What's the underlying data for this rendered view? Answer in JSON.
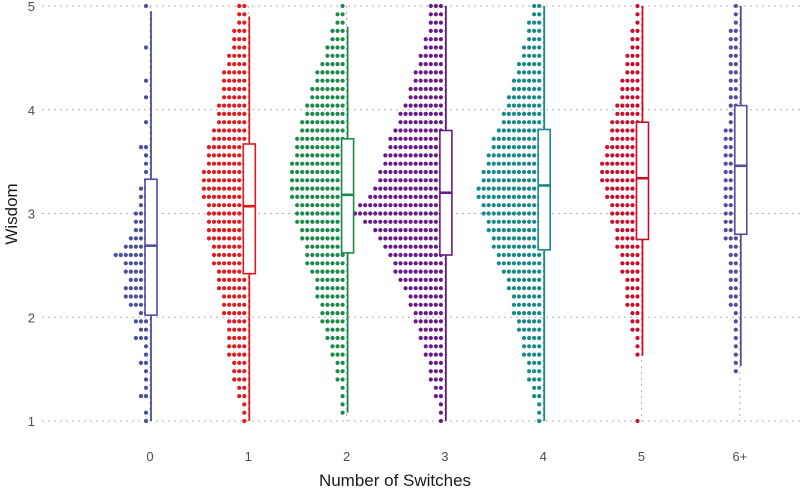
{
  "chart_data": {
    "type": "dot-box",
    "xlabel": "Number of Switches",
    "ylabel": "Wisdom",
    "ylim": [
      1,
      5
    ],
    "yticks": [
      1,
      2,
      3,
      4,
      5
    ],
    "grid": true,
    "categories": [
      {
        "label": "0",
        "color": "#4a4f9c",
        "median": 2.69,
        "q1": 2.02,
        "q3": 3.33,
        "whisker_low": 1.0,
        "whisker_high": 4.95
      },
      {
        "label": "1",
        "color": "#e31a1c",
        "median": 3.07,
        "q1": 2.42,
        "q3": 3.67,
        "whisker_low": 1.0,
        "whisker_high": 4.9
      },
      {
        "label": "2",
        "color": "#1b8a4a",
        "median": 3.18,
        "q1": 2.62,
        "q3": 3.72,
        "whisker_low": 1.08,
        "whisker_high": 4.8
      },
      {
        "label": "3",
        "color": "#6a1b8a",
        "median": 3.2,
        "q1": 2.6,
        "q3": 3.8,
        "whisker_low": 1.0,
        "whisker_high": 5.0
      },
      {
        "label": "4",
        "color": "#168a8a",
        "median": 3.27,
        "q1": 2.65,
        "q3": 3.81,
        "whisker_low": 1.0,
        "whisker_high": 5.0
      },
      {
        "label": "5",
        "color": "#c8102e",
        "median": 3.34,
        "q1": 2.75,
        "q3": 3.88,
        "whisker_low": 1.63,
        "whisker_high": 5.0
      },
      {
        "label": "6+",
        "color": "#5b4a9c",
        "median": 3.46,
        "q1": 2.8,
        "q3": 4.04,
        "whisker_low": 1.53,
        "whisker_high": 5.0
      }
    ],
    "distribution_bins": [
      [
        1,
        1,
        0,
        2,
        1,
        1,
        1,
        2,
        1,
        1,
        3,
        2,
        3,
        2,
        4,
        5,
        5,
        4,
        5,
        5,
        7,
        5,
        4,
        3,
        3,
        3,
        2,
        2,
        2,
        1,
        1,
        1,
        1,
        2,
        0,
        0,
        1,
        0,
        0,
        1,
        0,
        1,
        0,
        0,
        0,
        1,
        0,
        0,
        0,
        0,
        1
      ],
      [
        1,
        1,
        1,
        2,
        2,
        3,
        3,
        3,
        4,
        4,
        4,
        4,
        4,
        5,
        5,
        5,
        6,
        6,
        6,
        7,
        7,
        7,
        8,
        8,
        8,
        8,
        8,
        9,
        9,
        9,
        9,
        8,
        8,
        8,
        7,
        7,
        6,
        6,
        6,
        5,
        5,
        5,
        5,
        4,
        4,
        3,
        3,
        3,
        2,
        2,
        2
      ],
      [
        0,
        1,
        1,
        1,
        1,
        2,
        2,
        2,
        3,
        3,
        4,
        4,
        5,
        5,
        5,
        6,
        6,
        6,
        7,
        8,
        8,
        8,
        9,
        9,
        10,
        10,
        10,
        11,
        11,
        11,
        11,
        11,
        10,
        10,
        10,
        9,
        9,
        8,
        8,
        7,
        7,
        6,
        6,
        5,
        4,
        4,
        3,
        3,
        2,
        2,
        1
      ],
      [
        1,
        1,
        1,
        2,
        2,
        3,
        3,
        3,
        4,
        4,
        5,
        5,
        6,
        6,
        7,
        7,
        8,
        9,
        10,
        10,
        11,
        12,
        13,
        14,
        16,
        18,
        17,
        15,
        14,
        13,
        13,
        12,
        12,
        11,
        11,
        10,
        9,
        9,
        8,
        7,
        7,
        6,
        6,
        5,
        5,
        4,
        4,
        3,
        3,
        3,
        3
      ],
      [
        1,
        1,
        1,
        2,
        2,
        3,
        3,
        3,
        4,
        4,
        4,
        5,
        5,
        6,
        6,
        6,
        7,
        7,
        8,
        9,
        9,
        10,
        10,
        11,
        11,
        12,
        12,
        13,
        13,
        12,
        12,
        11,
        11,
        10,
        10,
        9,
        8,
        8,
        7,
        7,
        6,
        6,
        5,
        5,
        4,
        4,
        3,
        3,
        3,
        2,
        2
      ],
      [
        1,
        0,
        0,
        0,
        0,
        0,
        0,
        0,
        1,
        1,
        1,
        2,
        2,
        2,
        3,
        3,
        3,
        3,
        4,
        4,
        4,
        5,
        5,
        5,
        6,
        6,
        6,
        7,
        7,
        8,
        8,
        8,
        7,
        7,
        6,
        6,
        6,
        5,
        5,
        4,
        4,
        4,
        3,
        3,
        3,
        2,
        2,
        2,
        1,
        1,
        1
      ],
      [
        0,
        0,
        0,
        0,
        0,
        0,
        1,
        1,
        1,
        1,
        1,
        1,
        1,
        1,
        2,
        2,
        2,
        2,
        2,
        2,
        2,
        2,
        3,
        3,
        3,
        3,
        3,
        3,
        3,
        3,
        3,
        3,
        3,
        3,
        3,
        3,
        2,
        2,
        2,
        2,
        2,
        2,
        2,
        2,
        2,
        2,
        2,
        2,
        1,
        1,
        1
      ]
    ]
  }
}
